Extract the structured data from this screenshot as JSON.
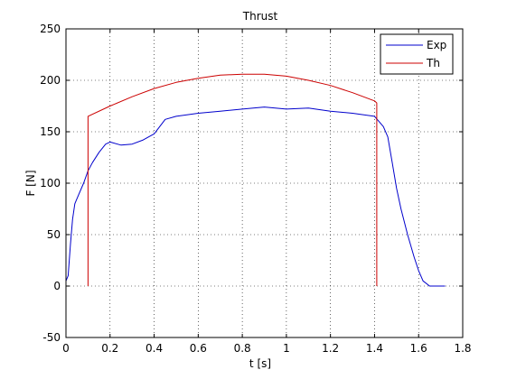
{
  "chart_data": {
    "type": "line",
    "title": "Thrust",
    "xlabel": "t [s]",
    "ylabel": "F [N]",
    "xlim": [
      0,
      1.8
    ],
    "ylim": [
      -50,
      250
    ],
    "xticks": [
      0,
      0.2,
      0.4,
      0.6,
      0.8,
      1,
      1.2,
      1.4,
      1.6,
      1.8
    ],
    "xtick_labels": [
      "0",
      "0.2",
      "0.4",
      "0.6",
      "0.8",
      "1",
      "1.2",
      "1.4",
      "1.6",
      "1.8"
    ],
    "yticks": [
      -50,
      0,
      50,
      100,
      150,
      200,
      250
    ],
    "ytick_labels": [
      "-50",
      "0",
      "50",
      "100",
      "150",
      "200",
      "250"
    ],
    "grid": true,
    "legend_position": "top-right",
    "series": [
      {
        "name": "Exp",
        "color": "#0000cc",
        "x": [
          0.0,
          0.01,
          0.02,
          0.03,
          0.04,
          0.05,
          0.06,
          0.08,
          0.1,
          0.12,
          0.15,
          0.18,
          0.2,
          0.25,
          0.3,
          0.35,
          0.4,
          0.45,
          0.5,
          0.6,
          0.7,
          0.8,
          0.9,
          1.0,
          1.1,
          1.2,
          1.3,
          1.4,
          1.42,
          1.44,
          1.46,
          1.48,
          1.5,
          1.52,
          1.55,
          1.58,
          1.6,
          1.62,
          1.65,
          1.7,
          1.72
        ],
        "y": [
          5,
          10,
          40,
          65,
          80,
          85,
          90,
          100,
          112,
          120,
          130,
          138,
          140,
          137,
          138,
          142,
          148,
          162,
          165,
          168,
          170,
          172,
          174,
          172,
          173,
          170,
          168,
          165,
          160,
          155,
          145,
          120,
          95,
          75,
          50,
          28,
          15,
          5,
          0,
          0,
          0
        ]
      },
      {
        "name": "Th",
        "color": "#cc0000",
        "x": [
          0.1,
          0.1,
          0.2,
          0.3,
          0.4,
          0.5,
          0.6,
          0.7,
          0.8,
          0.9,
          1.0,
          1.1,
          1.2,
          1.3,
          1.4,
          1.41,
          1.41
        ],
        "y": [
          0,
          165,
          175,
          184,
          192,
          198,
          202,
          205,
          206,
          206,
          204,
          200,
          195,
          188,
          180,
          178,
          0
        ]
      }
    ]
  }
}
